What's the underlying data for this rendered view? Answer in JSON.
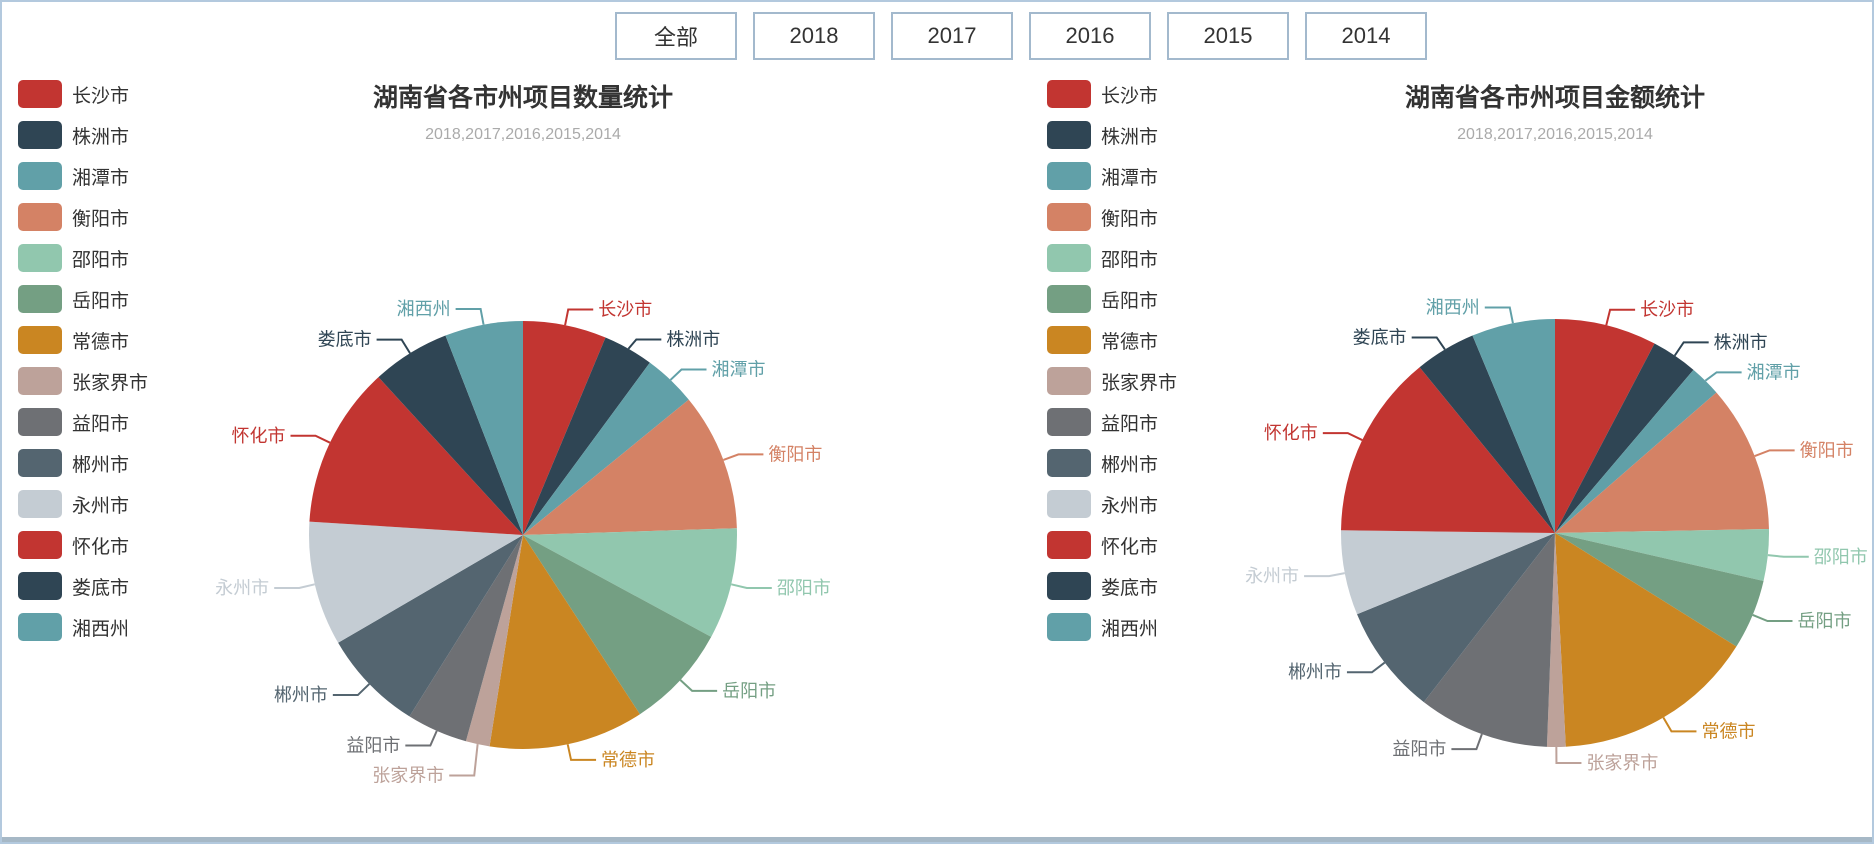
{
  "filter_bar": {
    "buttons": [
      "全部",
      "2018",
      "2017",
      "2016",
      "2015",
      "2014"
    ]
  },
  "chart_data": [
    {
      "type": "pie",
      "title": "湖南省各市州项目数量统计",
      "subtitle": "2018,2017,2016,2015,2014",
      "legend_position": "left",
      "label_position": "outside",
      "categories": [
        "长沙市",
        "株洲市",
        "湘潭市",
        "衡阳市",
        "邵阳市",
        "岳阳市",
        "常德市",
        "张家界市",
        "益阳市",
        "郴州市",
        "永州市",
        "怀化市",
        "娄底市",
        "湘西州"
      ],
      "values": [
        6.3,
        3.8,
        4.0,
        10.4,
        8.4,
        7.9,
        11.7,
        1.8,
        4.6,
        7.7,
        9.4,
        12.2,
        5.9,
        5.9
      ],
      "unit": "percent (estimated share)",
      "colors": [
        "#c23531",
        "#2f4554",
        "#61a0a8",
        "#d48265",
        "#91c7ae",
        "#749f83",
        "#ca8622",
        "#bda29a",
        "#6e7074",
        "#546570",
        "#c4ccd3",
        "#c23531",
        "#2f4554",
        "#61a0a8"
      ]
    },
    {
      "type": "pie",
      "title": "湖南省各市州项目金额统计",
      "subtitle": "2018,2017,2016,2015,2014",
      "legend_position": "left",
      "label_position": "outside",
      "categories": [
        "长沙市",
        "株洲市",
        "湘潭市",
        "衡阳市",
        "邵阳市",
        "岳阳市",
        "常德市",
        "张家界市",
        "益阳市",
        "郴州市",
        "永州市",
        "怀化市",
        "娄底市",
        "湘西州"
      ],
      "values": [
        7.7,
        3.5,
        2.4,
        11.1,
        3.9,
        5.3,
        15.3,
        1.4,
        9.9,
        8.3,
        6.4,
        13.9,
        4.6,
        6.3
      ],
      "unit": "percent (estimated share)",
      "colors": [
        "#c23531",
        "#2f4554",
        "#61a0a8",
        "#d48265",
        "#91c7ae",
        "#749f83",
        "#ca8622",
        "#bda29a",
        "#6e7074",
        "#546570",
        "#c4ccd3",
        "#c23531",
        "#2f4554",
        "#61a0a8"
      ]
    }
  ]
}
